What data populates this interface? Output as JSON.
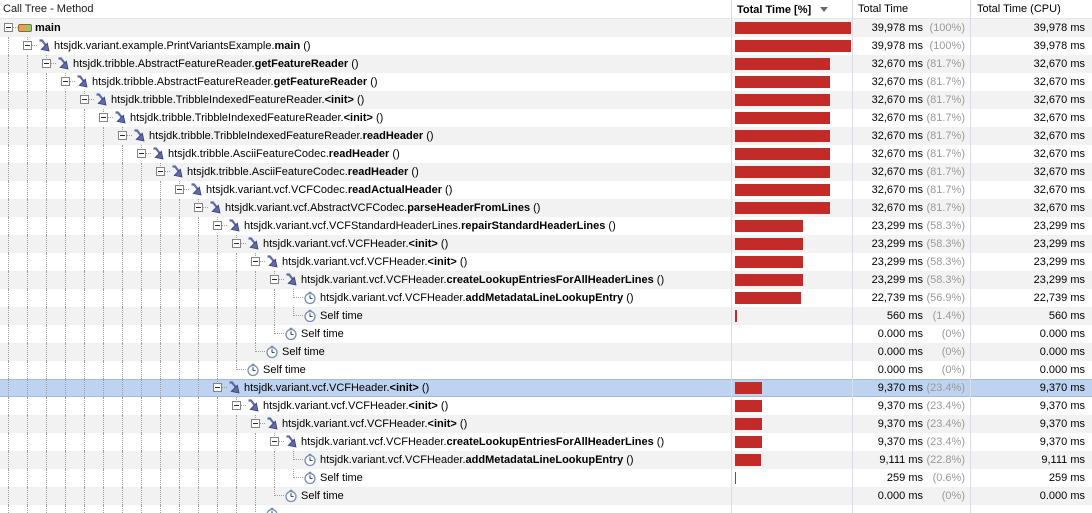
{
  "header": {
    "tree_label": "Call Tree - Method",
    "pct_label": "Total Time [%]",
    "total_label": "Total Time",
    "cpu_label": "Total Time (CPU)",
    "sort_icon": "triangle-down",
    "sorted_column": "Total Time [%]",
    "sort_direction": "descending"
  },
  "colors": {
    "bar": "#c32b28",
    "selected_row": "#bdd3f0",
    "stripe": "#f2f2f2",
    "percent_text": "#9a9a9a",
    "column_separator": "#dadde6"
  },
  "rows": [
    {
      "depth": 0,
      "icon": "thread-icon",
      "prefix": "",
      "method": "main",
      "suffix": "",
      "expandable": true,
      "selected": false,
      "pct_bar": 100,
      "time": "39,978 ms",
      "pct": "(100%)",
      "cpu": "39,978 ms"
    },
    {
      "depth": 1,
      "icon": "method-call-icon",
      "prefix": "htsjdk.variant.example.PrintVariantsExample.",
      "method": "main",
      "suffix": " ()",
      "expandable": true,
      "selected": false,
      "pct_bar": 100,
      "time": "39,978 ms",
      "pct": "(100%)",
      "cpu": "39,978 ms"
    },
    {
      "depth": 2,
      "icon": "method-call-icon",
      "prefix": "htsjdk.tribble.AbstractFeatureReader.",
      "method": "getFeatureReader",
      "suffix": " ()",
      "expandable": true,
      "selected": false,
      "pct_bar": 81.7,
      "time": "32,670 ms",
      "pct": "(81.7%)",
      "cpu": "32,670 ms"
    },
    {
      "depth": 3,
      "icon": "method-call-icon",
      "prefix": "htsjdk.tribble.AbstractFeatureReader.",
      "method": "getFeatureReader",
      "suffix": " ()",
      "expandable": true,
      "selected": false,
      "pct_bar": 81.7,
      "time": "32,670 ms",
      "pct": "(81.7%)",
      "cpu": "32,670 ms"
    },
    {
      "depth": 4,
      "icon": "method-call-icon",
      "prefix": "htsjdk.tribble.TribbleIndexedFeatureReader.",
      "method": "<init>",
      "suffix": " ()",
      "expandable": true,
      "selected": false,
      "pct_bar": 81.7,
      "time": "32,670 ms",
      "pct": "(81.7%)",
      "cpu": "32,670 ms"
    },
    {
      "depth": 5,
      "icon": "method-call-icon",
      "prefix": "htsjdk.tribble.TribbleIndexedFeatureReader.",
      "method": "<init>",
      "suffix": " ()",
      "expandable": true,
      "selected": false,
      "pct_bar": 81.7,
      "time": "32,670 ms",
      "pct": "(81.7%)",
      "cpu": "32,670 ms"
    },
    {
      "depth": 6,
      "icon": "method-call-icon",
      "prefix": "htsjdk.tribble.TribbleIndexedFeatureReader.",
      "method": "readHeader",
      "suffix": " ()",
      "expandable": true,
      "selected": false,
      "pct_bar": 81.7,
      "time": "32,670 ms",
      "pct": "(81.7%)",
      "cpu": "32,670 ms"
    },
    {
      "depth": 7,
      "icon": "method-call-icon",
      "prefix": "htsjdk.tribble.AsciiFeatureCodec.",
      "method": "readHeader",
      "suffix": " ()",
      "expandable": true,
      "selected": false,
      "pct_bar": 81.7,
      "time": "32,670 ms",
      "pct": "(81.7%)",
      "cpu": "32,670 ms"
    },
    {
      "depth": 8,
      "icon": "method-call-icon",
      "prefix": "htsjdk.tribble.AsciiFeatureCodec.",
      "method": "readHeader",
      "suffix": " ()",
      "expandable": true,
      "selected": false,
      "pct_bar": 81.7,
      "time": "32,670 ms",
      "pct": "(81.7%)",
      "cpu": "32,670 ms"
    },
    {
      "depth": 9,
      "icon": "method-call-icon",
      "prefix": "htsjdk.variant.vcf.VCFCodec.",
      "method": "readActualHeader",
      "suffix": " ()",
      "expandable": true,
      "selected": false,
      "pct_bar": 81.7,
      "time": "32,670 ms",
      "pct": "(81.7%)",
      "cpu": "32,670 ms"
    },
    {
      "depth": 10,
      "icon": "method-call-icon",
      "prefix": "htsjdk.variant.vcf.AbstractVCFCodec.",
      "method": "parseHeaderFromLines",
      "suffix": " ()",
      "expandable": true,
      "selected": false,
      "pct_bar": 81.7,
      "time": "32,670 ms",
      "pct": "(81.7%)",
      "cpu": "32,670 ms"
    },
    {
      "depth": 11,
      "icon": "method-call-icon",
      "prefix": "htsjdk.variant.vcf.VCFStandardHeaderLines.",
      "method": "repairStandardHeaderLines",
      "suffix": " ()",
      "expandable": true,
      "selected": false,
      "pct_bar": 58.3,
      "time": "23,299 ms",
      "pct": "(58.3%)",
      "cpu": "23,299 ms"
    },
    {
      "depth": 12,
      "icon": "method-call-icon",
      "prefix": "htsjdk.variant.vcf.VCFHeader.",
      "method": "<init>",
      "suffix": " ()",
      "expandable": true,
      "selected": false,
      "pct_bar": 58.3,
      "time": "23,299 ms",
      "pct": "(58.3%)",
      "cpu": "23,299 ms"
    },
    {
      "depth": 13,
      "icon": "method-call-icon",
      "prefix": "htsjdk.variant.vcf.VCFHeader.",
      "method": "<init>",
      "suffix": " ()",
      "expandable": true,
      "selected": false,
      "pct_bar": 58.3,
      "time": "23,299 ms",
      "pct": "(58.3%)",
      "cpu": "23,299 ms"
    },
    {
      "depth": 14,
      "icon": "method-call-icon",
      "prefix": "htsjdk.variant.vcf.VCFHeader.",
      "method": "createLookupEntriesForAllHeaderLines",
      "suffix": " ()",
      "expandable": true,
      "selected": false,
      "pct_bar": 58.3,
      "time": "23,299 ms",
      "pct": "(58.3%)",
      "cpu": "23,299 ms"
    },
    {
      "depth": 15,
      "icon": "clock-icon",
      "prefix": "htsjdk.variant.vcf.VCFHeader.",
      "method": "addMetadataLineLookupEntry",
      "suffix": " ()",
      "expandable": false,
      "selected": false,
      "pct_bar": 56.9,
      "time": "22,739 ms",
      "pct": "(56.9%)",
      "cpu": "22,739 ms"
    },
    {
      "depth": 15,
      "icon": "clock-icon",
      "prefix": "Self time",
      "method": "",
      "suffix": "",
      "expandable": false,
      "selected": false,
      "pct_bar": 1.4,
      "time": "560 ms",
      "pct": "(1.4%)",
      "cpu": "560 ms"
    },
    {
      "depth": 14,
      "icon": "clock-icon",
      "prefix": "Self time",
      "method": "",
      "suffix": "",
      "expandable": false,
      "selected": false,
      "pct_bar": 0,
      "time": "0.000 ms",
      "pct": "(0%)",
      "cpu": "0.000 ms"
    },
    {
      "depth": 13,
      "icon": "clock-icon",
      "prefix": "Self time",
      "method": "",
      "suffix": "",
      "expandable": false,
      "selected": false,
      "pct_bar": 0,
      "time": "0.000 ms",
      "pct": "(0%)",
      "cpu": "0.000 ms"
    },
    {
      "depth": 12,
      "icon": "clock-icon",
      "prefix": "Self time",
      "method": "",
      "suffix": "",
      "expandable": false,
      "selected": false,
      "pct_bar": 0,
      "time": "0.000 ms",
      "pct": "(0%)",
      "cpu": "0.000 ms"
    },
    {
      "depth": 11,
      "icon": "method-call-icon",
      "prefix": "htsjdk.variant.vcf.VCFHeader.",
      "method": "<init>",
      "suffix": " ()",
      "expandable": true,
      "selected": true,
      "pct_bar": 23.4,
      "time": "9,370 ms",
      "pct": "(23.4%)",
      "cpu": "9,370 ms"
    },
    {
      "depth": 12,
      "icon": "method-call-icon",
      "prefix": "htsjdk.variant.vcf.VCFHeader.",
      "method": "<init>",
      "suffix": " ()",
      "expandable": true,
      "selected": false,
      "pct_bar": 23.4,
      "time": "9,370 ms",
      "pct": "(23.4%)",
      "cpu": "9,370 ms"
    },
    {
      "depth": 13,
      "icon": "method-call-icon",
      "prefix": "htsjdk.variant.vcf.VCFHeader.",
      "method": "<init>",
      "suffix": " ()",
      "expandable": true,
      "selected": false,
      "pct_bar": 23.4,
      "time": "9,370 ms",
      "pct": "(23.4%)",
      "cpu": "9,370 ms"
    },
    {
      "depth": 14,
      "icon": "method-call-icon",
      "prefix": "htsjdk.variant.vcf.VCFHeader.",
      "method": "createLookupEntriesForAllHeaderLines",
      "suffix": " ()",
      "expandable": true,
      "selected": false,
      "pct_bar": 23.4,
      "time": "9,370 ms",
      "pct": "(23.4%)",
      "cpu": "9,370 ms"
    },
    {
      "depth": 15,
      "icon": "clock-icon",
      "prefix": "htsjdk.variant.vcf.VCFHeader.",
      "method": "addMetadataLineLookupEntry",
      "suffix": " ()",
      "expandable": false,
      "selected": false,
      "pct_bar": 22.8,
      "time": "9,111 ms",
      "pct": "(22.8%)",
      "cpu": "9,111 ms"
    },
    {
      "depth": 15,
      "icon": "clock-icon",
      "prefix": "Self time",
      "method": "",
      "suffix": "",
      "expandable": false,
      "selected": false,
      "pct_bar": 0.6,
      "time": "259 ms",
      "pct": "(0.6%)",
      "cpu": "259 ms"
    },
    {
      "depth": 14,
      "icon": "clock-icon",
      "prefix": "Self time",
      "method": "",
      "suffix": "",
      "expandable": false,
      "selected": false,
      "pct_bar": 0,
      "time": "0.000 ms",
      "pct": "(0%)",
      "cpu": "0.000 ms"
    },
    {
      "depth": 13,
      "icon": "clock-icon",
      "prefix": "",
      "method": "",
      "suffix": "",
      "expandable": false,
      "selected": false,
      "pct_bar": 0,
      "time": "",
      "pct": "",
      "cpu": ""
    }
  ]
}
